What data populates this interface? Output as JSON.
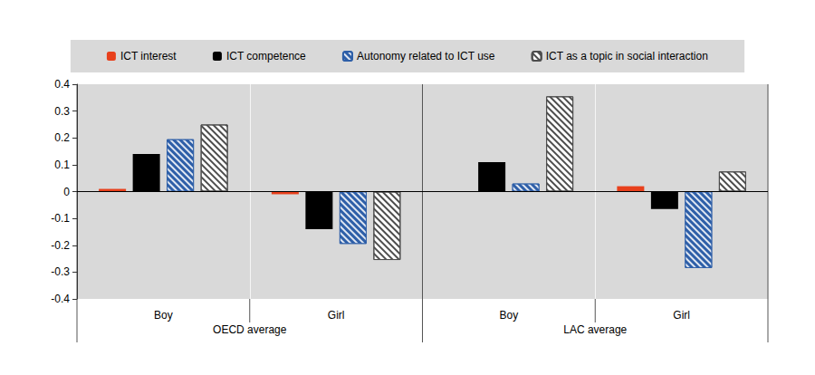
{
  "chart_data": {
    "type": "bar",
    "categories": [
      "Boy",
      "Girl",
      "Boy",
      "Girl"
    ],
    "category_groups": [
      {
        "label": "OECD average",
        "span": 2
      },
      {
        "label": "LAC average",
        "span": 2
      }
    ],
    "series": [
      {
        "name": "ICT interest",
        "color": "#e8401c",
        "values": [
          0.01,
          -0.01,
          0.0,
          0.02
        ]
      },
      {
        "name": "ICT competence",
        "color": "#000000",
        "values": [
          0.14,
          -0.14,
          0.11,
          -0.065
        ]
      },
      {
        "name": "Autonomy related to ICT use",
        "color": "#2e5fa8",
        "values": [
          0.195,
          -0.195,
          0.03,
          -0.285
        ]
      },
      {
        "name": "ICT as a topic in social interaction",
        "color": "#4d4d4d",
        "values": [
          0.25,
          -0.255,
          0.355,
          0.075
        ]
      }
    ],
    "ylim": [
      -0.4,
      0.4
    ],
    "yticks": [
      -0.4,
      -0.3,
      -0.2,
      -0.1,
      0,
      0.1,
      0.2,
      0.3,
      0.4
    ],
    "grid": false,
    "legend": "top"
  }
}
